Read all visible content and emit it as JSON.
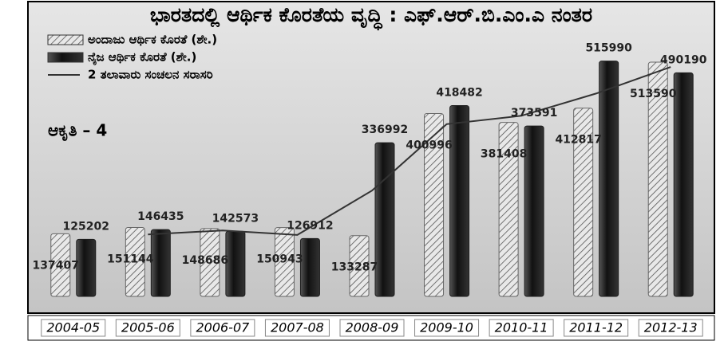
{
  "chart_data": {
    "type": "bar",
    "title": "ಭಾರತದಲ್ಲಿ ಆರ್ಥಿಕ ಕೊರತೆಯ ವೃದ್ಧಿ : ಎಫ್.ಆರ್.ಬಿ.ಎಂ.ಎ ನಂತರ",
    "annotation": "ಆಕೃತಿ – 4",
    "categories": [
      "2004-05",
      "2005-06",
      "2006-07",
      "2007-08",
      "2008-09",
      "2009-10",
      "2010-11",
      "2011-12",
      "2012-13"
    ],
    "series": [
      {
        "name": "ಅಂದಾಜು ಆರ್ಥಿಕ ಕೊರತೆ (ಶೇ.)",
        "color": "#d9d9d9",
        "pattern": "hatch",
        "values": [
          137407,
          151144,
          148686,
          150943,
          133287,
          400996,
          381408,
          412817,
          513590
        ]
      },
      {
        "name": "ನೈಜ ಆರ್ಥಿಕ ಕೊರತೆ (ಶೇ.)",
        "color": "#1e1e1e",
        "values": [
          125202,
          146435,
          142573,
          126912,
          336992,
          418482,
          373591,
          515990,
          490190
        ]
      },
      {
        "name": "2 ತಲಾವಾರು ಸಂಚಲನ ಸರಾಸರಿ",
        "color": "#333333",
        "type": "line",
        "values": [
          null,
          135819,
          144504,
          134743,
          231952,
          377737,
          396037,
          444791,
          503090
        ]
      }
    ],
    "ylim": [
      0,
      580000
    ]
  }
}
